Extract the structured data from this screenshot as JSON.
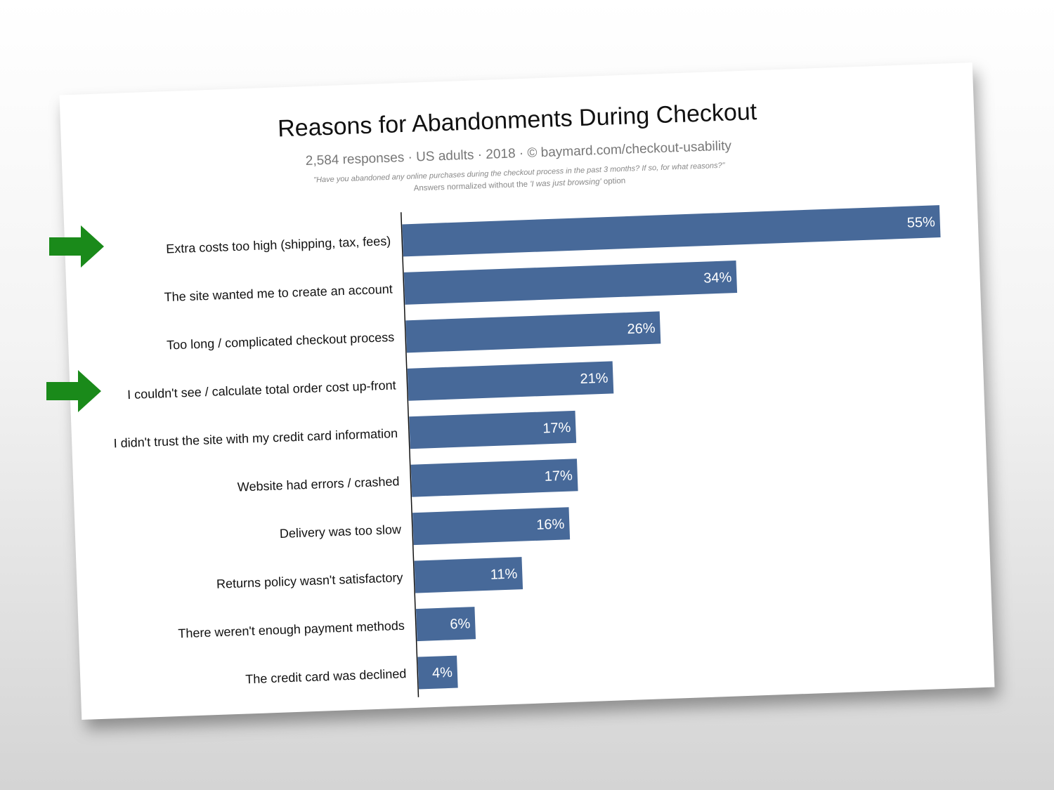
{
  "colors": {
    "bar": "#476999",
    "arrow": "#1a8a1a",
    "axis": "#111111"
  },
  "header": {
    "title": "Reasons for Abandonments During Checkout",
    "subtitle": "2,584 responses  ·  US adults  ·  2018  ·  ©  baymard.com/checkout-usability",
    "question": "\"Have you abandoned any online purchases during the checkout process in the past 3 months? If so, for what reasons?\"",
    "note_prefix": "Answers normalized without the ",
    "note_option": "'I was just browsing'",
    "note_suffix": " option"
  },
  "annotations": {
    "highlighted_categories": [
      "Extra costs too high (shipping, tax, fees)",
      "I couldn't see / calculate total order cost up-front"
    ],
    "arrow_icon": "arrow-right-icon"
  },
  "chart_data": {
    "type": "bar",
    "orientation": "horizontal",
    "categories": [
      "Extra costs too high (shipping, tax, fees)",
      "The site wanted me to create an account",
      "Too long / complicated checkout process",
      "I couldn't see / calculate total order cost up-front",
      "I didn't trust the site with my credit card information",
      "Website had errors / crashed",
      "Delivery was too slow",
      "Returns policy wasn't satisfactory",
      "There weren't enough payment methods",
      "The credit card was declined"
    ],
    "values": [
      55,
      34,
      26,
      21,
      17,
      17,
      16,
      11,
      6,
      4
    ],
    "value_labels": [
      "55%",
      "34%",
      "26%",
      "21%",
      "17%",
      "17%",
      "16%",
      "11%",
      "6%",
      "4%"
    ],
    "unit": "%",
    "xlim": [
      0,
      55
    ],
    "grid": false,
    "legend": "none"
  }
}
